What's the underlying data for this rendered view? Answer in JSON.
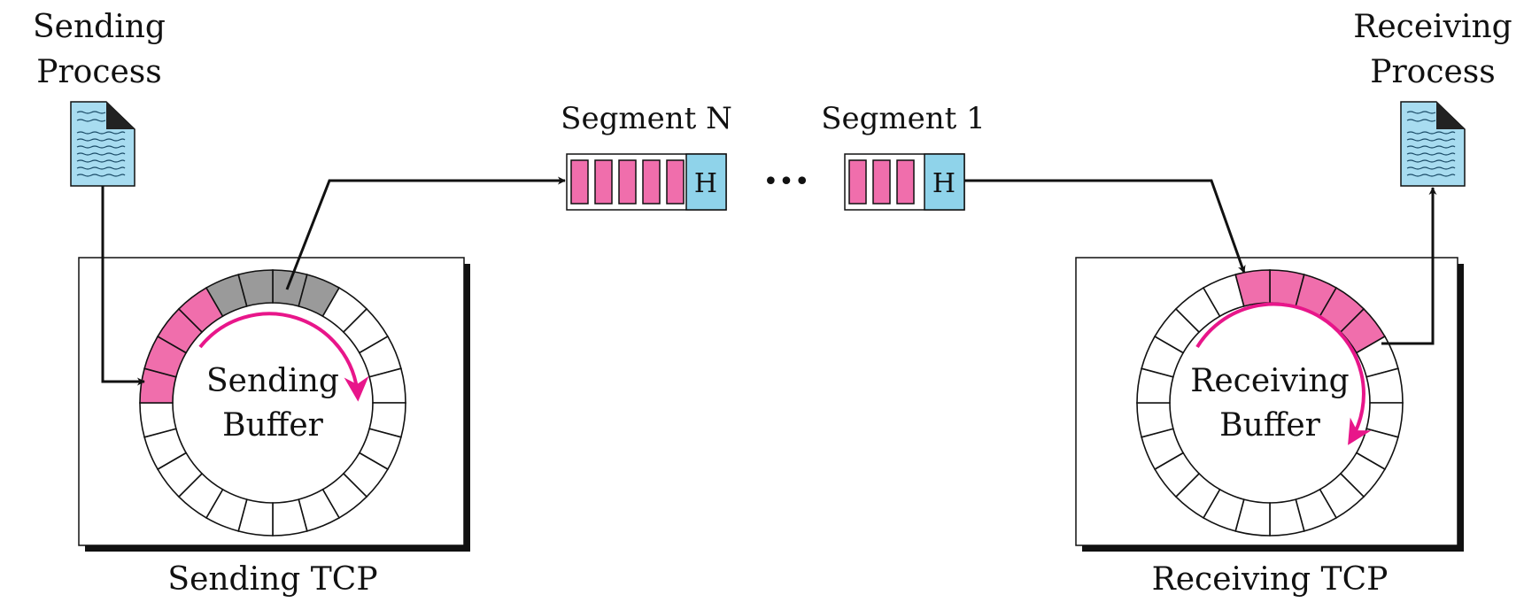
{
  "sender": {
    "process_label_line1": "Sending",
    "process_label_line2": "Process",
    "buffer_label_line1": "Sending",
    "buffer_label_line2": "Buffer",
    "tcp_label": "Sending TCP",
    "icon": "document-icon"
  },
  "receiver": {
    "process_label_line1": "Receiving",
    "process_label_line2": "Process",
    "buffer_label_line1": "Receiving",
    "buffer_label_line2": "Buffer",
    "tcp_label": "Receiving TCP",
    "icon": "document-icon"
  },
  "segments": [
    {
      "label": "Segment N",
      "header": "H",
      "data_cells": 5
    },
    {
      "label": "Segment 1",
      "header": "H",
      "data_cells": 3
    }
  ],
  "ellipsis": "•••",
  "ring": {
    "cells": 24,
    "sending_filled": [
      18,
      19,
      20,
      21
    ],
    "sending_sent": [
      22,
      23,
      0,
      1
    ],
    "receiving_filled": [
      23,
      0,
      1,
      2,
      3
    ]
  },
  "colors": {
    "data": "#f06eac",
    "sent": "#9a9a9a",
    "header": "#8fd3ea",
    "document": "#a8dcf0",
    "arrow_accent": "#e8168a",
    "line": "#111111"
  }
}
